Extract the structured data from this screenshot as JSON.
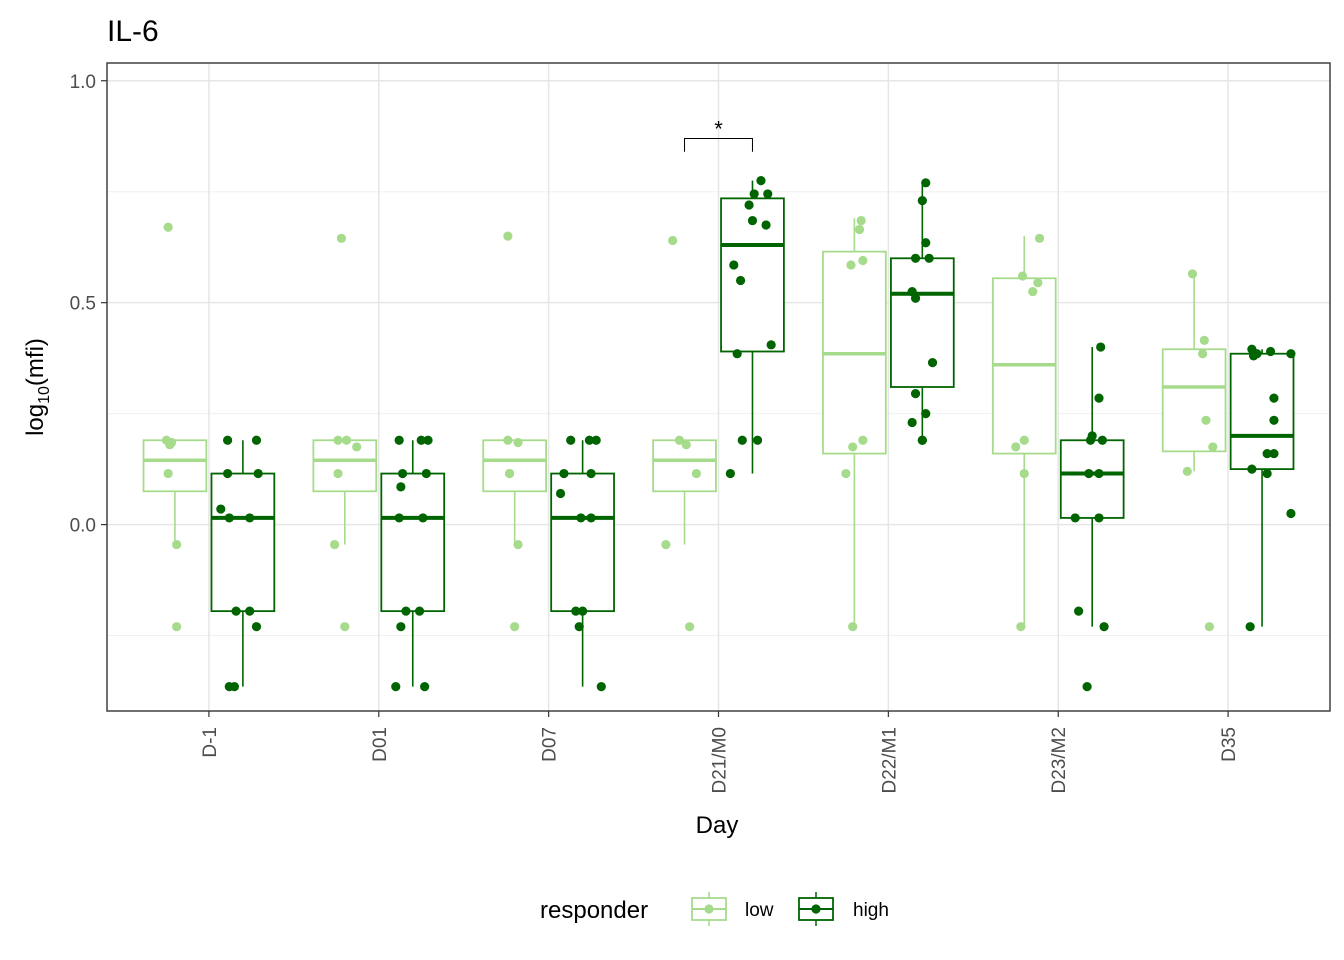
{
  "chart_data": {
    "type": "box",
    "title": "IL-6",
    "xlabel": "Day",
    "ylabel_main": "log",
    "ylabel_sub": "10",
    "ylabel_rest": "(mfi)",
    "ylim": [
      -0.42,
      1.04
    ],
    "yticks": [
      0.0,
      0.5,
      1.0
    ],
    "ytick_labels": [
      "0.0",
      "0.5",
      "1.0"
    ],
    "yminor": [
      -0.25,
      0.25,
      0.75
    ],
    "grid": true,
    "categories": [
      "D-1",
      "D01",
      "D07",
      "D21/M0",
      "D22/M1",
      "D23/M2",
      "D35"
    ],
    "legend": {
      "title": "responder",
      "position": "bottom",
      "labels": [
        "low",
        "high"
      ]
    },
    "colors": {
      "low": "#a6db8c",
      "high": "#006400"
    },
    "significance": [
      {
        "category": "D21/M0",
        "label": "*",
        "y_line": 0.87,
        "y_drop": 0.84
      }
    ],
    "series": [
      {
        "name": "low",
        "boxes": [
          {
            "q1": 0.075,
            "median": 0.145,
            "q3": 0.19,
            "lower": -0.045,
            "upper": 0.19
          },
          {
            "q1": 0.075,
            "median": 0.145,
            "q3": 0.19,
            "lower": -0.045,
            "upper": 0.19
          },
          {
            "q1": 0.075,
            "median": 0.145,
            "q3": 0.19,
            "lower": -0.045,
            "upper": 0.19
          },
          {
            "q1": 0.075,
            "median": 0.145,
            "q3": 0.19,
            "lower": -0.045,
            "upper": 0.19
          },
          {
            "q1": 0.16,
            "median": 0.385,
            "q3": 0.615,
            "lower": -0.23,
            "upper": 0.69
          },
          {
            "q1": 0.16,
            "median": 0.36,
            "q3": 0.555,
            "lower": -0.23,
            "upper": 0.65
          },
          {
            "q1": 0.165,
            "median": 0.31,
            "q3": 0.395,
            "lower": 0.12,
            "upper": 0.565
          }
        ],
        "points": [
          [
            [
              -0.04,
              0.67
            ],
            [
              -0.05,
              0.19
            ],
            [
              -0.03,
              0.18
            ],
            [
              -0.04,
              0.115
            ],
            [
              0.01,
              -0.045
            ],
            [
              0.01,
              -0.23
            ],
            [
              -0.02,
              0.185
            ]
          ],
          [
            [
              -0.02,
              0.645
            ],
            [
              -0.04,
              0.19
            ],
            [
              0.01,
              0.19
            ],
            [
              -0.04,
              0.115
            ],
            [
              0.07,
              0.175
            ],
            [
              -0.06,
              -0.045
            ],
            [
              0.0,
              -0.23
            ]
          ],
          [
            [
              -0.04,
              0.65
            ],
            [
              -0.04,
              0.19
            ],
            [
              0.02,
              0.185
            ],
            [
              -0.03,
              0.115
            ],
            [
              0.02,
              -0.045
            ],
            [
              0.0,
              -0.23
            ],
            [
              -0.03,
              0.115
            ]
          ],
          [
            [
              -0.07,
              0.64
            ],
            [
              -0.03,
              0.19
            ],
            [
              0.01,
              0.18
            ],
            [
              0.07,
              0.115
            ],
            [
              -0.11,
              -0.045
            ],
            [
              0.03,
              -0.23
            ]
          ],
          [
            [
              0.04,
              0.685
            ],
            [
              0.03,
              0.665
            ],
            [
              0.05,
              0.595
            ],
            [
              -0.02,
              0.585
            ],
            [
              0.05,
              0.19
            ],
            [
              -0.01,
              0.175
            ],
            [
              -0.05,
              0.115
            ],
            [
              -0.01,
              -0.23
            ]
          ],
          [
            [
              0.09,
              0.645
            ],
            [
              -0.01,
              0.56
            ],
            [
              0.08,
              0.545
            ],
            [
              0.05,
              0.525
            ],
            [
              0.0,
              0.19
            ],
            [
              -0.05,
              0.175
            ],
            [
              0.0,
              0.115
            ],
            [
              -0.02,
              -0.23
            ]
          ],
          [
            [
              -0.01,
              0.565
            ],
            [
              0.06,
              0.415
            ],
            [
              0.05,
              0.385
            ],
            [
              0.07,
              0.235
            ],
            [
              0.11,
              0.175
            ],
            [
              -0.04,
              0.12
            ],
            [
              0.09,
              -0.23
            ]
          ]
        ]
      },
      {
        "name": "high",
        "boxes": [
          {
            "q1": -0.195,
            "median": 0.015,
            "q3": 0.115,
            "lower": -0.365,
            "upper": 0.19
          },
          {
            "q1": -0.195,
            "median": 0.015,
            "q3": 0.115,
            "lower": -0.365,
            "upper": 0.19
          },
          {
            "q1": -0.195,
            "median": 0.015,
            "q3": 0.115,
            "lower": -0.365,
            "upper": 0.19
          },
          {
            "q1": 0.39,
            "median": 0.63,
            "q3": 0.735,
            "lower": 0.115,
            "upper": 0.775
          },
          {
            "q1": 0.31,
            "median": 0.52,
            "q3": 0.6,
            "lower": 0.19,
            "upper": 0.775
          },
          {
            "q1": 0.015,
            "median": 0.115,
            "q3": 0.19,
            "lower": -0.23,
            "upper": 0.4
          },
          {
            "q1": 0.125,
            "median": 0.2,
            "q3": 0.385,
            "lower": -0.23,
            "upper": 0.395
          }
        ],
        "points": [
          [
            [
              -0.09,
              0.19
            ],
            [
              0.08,
              0.19
            ],
            [
              -0.09,
              0.115
            ],
            [
              0.09,
              0.115
            ],
            [
              -0.13,
              0.035
            ],
            [
              -0.08,
              0.015
            ],
            [
              0.04,
              0.015
            ],
            [
              0.04,
              -0.195
            ],
            [
              -0.04,
              -0.195
            ],
            [
              0.08,
              -0.23
            ],
            [
              -0.05,
              -0.365
            ],
            [
              -0.08,
              -0.365
            ]
          ],
          [
            [
              -0.08,
              0.19
            ],
            [
              0.05,
              0.19
            ],
            [
              0.09,
              0.19
            ],
            [
              -0.06,
              0.115
            ],
            [
              0.08,
              0.115
            ],
            [
              -0.07,
              0.085
            ],
            [
              -0.08,
              0.015
            ],
            [
              0.06,
              0.015
            ],
            [
              -0.04,
              -0.195
            ],
            [
              0.04,
              -0.195
            ],
            [
              -0.07,
              -0.23
            ],
            [
              -0.1,
              -0.365
            ],
            [
              0.07,
              -0.365
            ]
          ],
          [
            [
              -0.07,
              0.19
            ],
            [
              0.08,
              0.19
            ],
            [
              0.04,
              0.19
            ],
            [
              -0.11,
              0.115
            ],
            [
              0.05,
              0.115
            ],
            [
              -0.13,
              0.07
            ],
            [
              -0.01,
              0.015
            ],
            [
              0.05,
              0.015
            ],
            [
              -0.04,
              -0.195
            ],
            [
              0.0,
              -0.195
            ],
            [
              -0.02,
              -0.23
            ],
            [
              0.11,
              -0.365
            ]
          ],
          [
            [
              0.05,
              0.775
            ],
            [
              0.09,
              0.745
            ],
            [
              0.01,
              0.745
            ],
            [
              -0.02,
              0.72
            ],
            [
              0.0,
              0.685
            ],
            [
              0.08,
              0.675
            ],
            [
              -0.11,
              0.585
            ],
            [
              -0.07,
              0.55
            ],
            [
              0.11,
              0.405
            ],
            [
              -0.09,
              0.385
            ],
            [
              0.03,
              0.19
            ],
            [
              -0.06,
              0.19
            ],
            [
              -0.13,
              0.115
            ]
          ],
          [
            [
              0.02,
              0.77
            ],
            [
              0.0,
              0.73
            ],
            [
              0.02,
              0.635
            ],
            [
              -0.04,
              0.6
            ],
            [
              0.04,
              0.6
            ],
            [
              -0.06,
              0.525
            ],
            [
              -0.04,
              0.51
            ],
            [
              0.06,
              0.365
            ],
            [
              -0.04,
              0.295
            ],
            [
              0.02,
              0.25
            ],
            [
              -0.06,
              0.23
            ],
            [
              0.0,
              0.19
            ],
            [
              0.0,
              0.19
            ]
          ],
          [
            [
              0.05,
              0.4
            ],
            [
              0.04,
              0.285
            ],
            [
              0.0,
              0.2
            ],
            [
              -0.01,
              0.19
            ],
            [
              0.06,
              0.19
            ],
            [
              -0.02,
              0.115
            ],
            [
              0.04,
              0.115
            ],
            [
              -0.1,
              0.015
            ],
            [
              0.04,
              0.015
            ],
            [
              -0.08,
              -0.195
            ],
            [
              0.07,
              -0.23
            ],
            [
              -0.03,
              -0.365
            ]
          ],
          [
            [
              -0.06,
              0.395
            ],
            [
              0.05,
              0.39
            ],
            [
              -0.03,
              0.385
            ],
            [
              0.17,
              0.385
            ],
            [
              -0.05,
              0.38
            ],
            [
              0.07,
              0.285
            ],
            [
              0.07,
              0.235
            ],
            [
              0.03,
              0.16
            ],
            [
              0.07,
              0.16
            ],
            [
              -0.06,
              0.125
            ],
            [
              0.03,
              0.115
            ],
            [
              0.17,
              0.025
            ],
            [
              -0.07,
              -0.23
            ]
          ]
        ]
      }
    ]
  }
}
